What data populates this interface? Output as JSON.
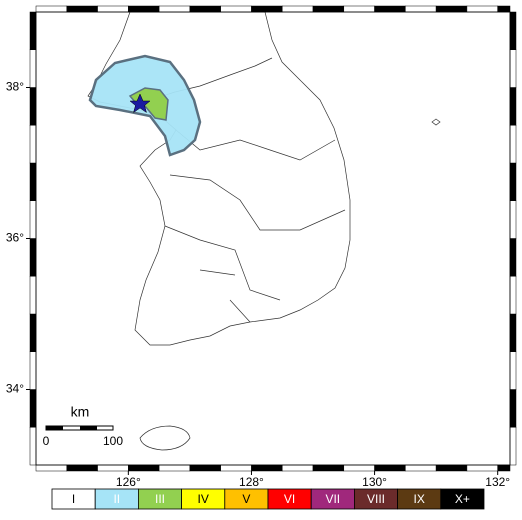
{
  "map": {
    "xlim": [
      124.5,
      132.2
    ],
    "ylim": [
      33,
      39
    ],
    "xticks": [
      {
        "value": 126,
        "label": "126°"
      },
      {
        "value": 128,
        "label": "128°"
      },
      {
        "value": 130,
        "label": "130°"
      },
      {
        "value": 132,
        "label": "132°"
      }
    ],
    "yticks": [
      {
        "value": 34,
        "label": "34°"
      },
      {
        "value": 36,
        "label": "36°"
      },
      {
        "value": 38,
        "label": "38°"
      }
    ],
    "scale_bar": {
      "unit": "km",
      "start": "0",
      "end": "100"
    }
  },
  "intensity_scale": [
    {
      "label": "I",
      "color": "#ffffff",
      "text_color": "#000000"
    },
    {
      "label": "II",
      "color": "#a6e4f7",
      "text_color": "#ffffff"
    },
    {
      "label": "III",
      "color": "#92d050",
      "text_color": "#ffffff"
    },
    {
      "label": "IV",
      "color": "#ffff00",
      "text_color": "#000000"
    },
    {
      "label": "V",
      "color": "#ffc000",
      "text_color": "#000000"
    },
    {
      "label": "VI",
      "color": "#ff0000",
      "text_color": "#ffffff"
    },
    {
      "label": "VII",
      "color": "#a0287c",
      "text_color": "#ffffff"
    },
    {
      "label": "VIII",
      "color": "#6b2b2b",
      "text_color": "#ffffff"
    },
    {
      "label": "IX",
      "color": "#5c3a12",
      "text_color": "#ffffff"
    },
    {
      "label": "X+",
      "color": "#000000",
      "text_color": "#ffffff"
    }
  ]
}
